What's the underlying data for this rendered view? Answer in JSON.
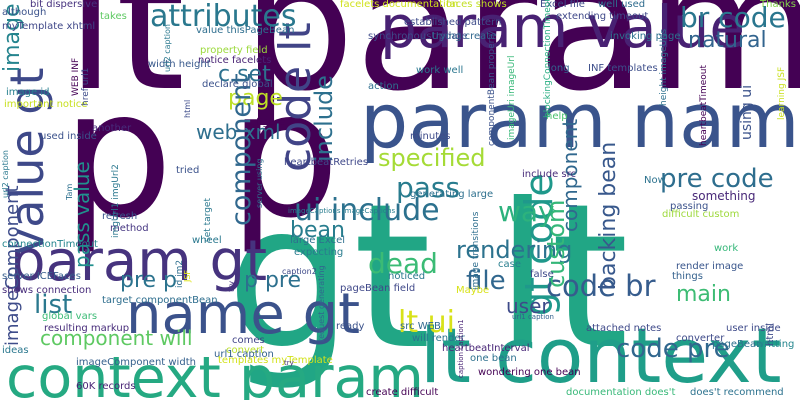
{
  "words": [
    {
      "text": "lt param",
      "color": "#440154"
    },
    {
      "text": "gt lt",
      "color": "#21a685"
    },
    {
      "text": "p p",
      "color": "#440154"
    },
    {
      "text": "param name",
      "color": "#3a548c"
    },
    {
      "text": "lt context",
      "color": "#1f9e89"
    },
    {
      "text": "context param",
      "color": "#25a982"
    },
    {
      "text": "param value",
      "color": "#482173"
    },
    {
      "text": "param gt",
      "color": "#46337e"
    },
    {
      "text": "name gt",
      "color": "#3b528b"
    },
    {
      "text": "value gt",
      "color": "#3e4989"
    },
    {
      "text": "code lt",
      "color": "#414487"
    },
    {
      "text": "br code",
      "color": "#2a768e"
    },
    {
      "text": "gt code",
      "color": "#1f988b"
    },
    {
      "text": "code br",
      "color": "#365c8d"
    },
    {
      "text": "attributes",
      "color": "#2a788e"
    },
    {
      "text": "component",
      "color": "#31688e"
    },
    {
      "text": "ui include",
      "color": "#2c718e"
    },
    {
      "text": "include",
      "color": "#2d708e"
    },
    {
      "text": "pre code",
      "color": "#2e6e8e"
    },
    {
      "text": "code pre",
      "color": "#31678e"
    },
    {
      "text": "pass value",
      "color": "#21908d"
    },
    {
      "text": "pass",
      "color": "#287c8e"
    },
    {
      "text": "rendering",
      "color": "#2c728e"
    },
    {
      "text": "specified",
      "color": "#a5db36"
    },
    {
      "text": "way",
      "color": "#2db27d"
    },
    {
      "text": "custom",
      "color": "#35b779"
    },
    {
      "text": "backing bean",
      "color": "#38588c"
    },
    {
      "text": "natural",
      "color": "#32648e"
    },
    {
      "text": "page",
      "color": "#bddf26"
    },
    {
      "text": "c set",
      "color": "#2d718e"
    },
    {
      "text": "pre p",
      "color": "#2c738e"
    },
    {
      "text": "p pre",
      "color": "#2d708e"
    },
    {
      "text": "list",
      "color": "#2a788e"
    },
    {
      "text": "dead",
      "color": "#3bbb75"
    },
    {
      "text": "file",
      "color": "#31678e"
    },
    {
      "text": "main",
      "color": "#3dbc74"
    },
    {
      "text": "lt ui",
      "color": "#d8e219"
    },
    {
      "text": "user",
      "color": "#3e4a89"
    },
    {
      "text": "bean",
      "color": "#287d8e"
    },
    {
      "text": "web xml",
      "color": "#2e6f8e"
    },
    {
      "text": "imageComponent",
      "color": "#3e4c8a"
    },
    {
      "text": "component will",
      "color": "#5ec962"
    },
    {
      "text": "image gt",
      "color": "#25848e"
    },
    {
      "text": "facelets documentation",
      "color": "#d0e11c"
    },
    {
      "text": "faces shows",
      "color": "#c2df23"
    },
    {
      "text": "Excel file",
      "color": "#3e4a89"
    },
    {
      "text": "well used",
      "color": "#2f6c8e"
    },
    {
      "text": "Thanks",
      "color": "#84d44b"
    },
    {
      "text": "value thisPageBean",
      "color": "#2e6e8e"
    },
    {
      "text": "property field",
      "color": "#9bd93c"
    },
    {
      "text": "bit dispersive",
      "color": "#46327e"
    },
    {
      "text": "although",
      "color": "#3b528b"
    },
    {
      "text": "myTemplate xhtml",
      "color": "#3f4788"
    },
    {
      "text": "takes",
      "color": "#5ec962"
    },
    {
      "text": "trying create",
      "color": "#31688e"
    },
    {
      "text": "invoking page",
      "color": "#2c718e"
    },
    {
      "text": "notice facelets",
      "color": "#482374"
    },
    {
      "text": "declare global",
      "color": "#3b528b"
    },
    {
      "text": "image id",
      "color": "#277f8e"
    },
    {
      "text": "important notice",
      "color": "#c8e020"
    },
    {
      "text": "used inside",
      "color": "#3b528b"
    },
    {
      "text": "another",
      "color": "#472c7a"
    },
    {
      "text": "heartbeatRetries",
      "color": "#3f4889"
    },
    {
      "text": "include src",
      "color": "#472c7a"
    },
    {
      "text": "heartbeatTimeout",
      "color": "#440154"
    },
    {
      "text": "heartbeatInterval",
      "color": "#482677"
    },
    {
      "text": "work well",
      "color": "#2a768e"
    },
    {
      "text": "action",
      "color": "#2e6e8e"
    },
    {
      "text": "help",
      "color": "#4ac16d"
    },
    {
      "text": "minutes",
      "color": "#3e4c8a"
    },
    {
      "text": "tried",
      "color": "#3b528b"
    },
    {
      "text": "figure",
      "color": "#440154"
    },
    {
      "text": "set target",
      "color": "#2a788e"
    },
    {
      "text": "refresh",
      "color": "#3a548c"
    },
    {
      "text": "method",
      "color": "#453581"
    },
    {
      "text": "large Excel",
      "color": "#2d708e"
    },
    {
      "text": "expecting",
      "color": "#287c8e"
    },
    {
      "text": "wheel",
      "color": "#2a788e"
    },
    {
      "text": "connectionTimeout",
      "color": "#24868e"
    },
    {
      "text": "server ICEFaces",
      "color": "#365d8d"
    },
    {
      "text": "shows connection",
      "color": "#472c7a"
    },
    {
      "text": "target componentBean",
      "color": "#2e6e8e"
    },
    {
      "text": "global vars",
      "color": "#3bbb75"
    },
    {
      "text": "resulting markup",
      "color": "#472c7a"
    },
    {
      "text": "user inside",
      "color": "#3e4a89"
    },
    {
      "text": "ideas",
      "color": "#2a778e"
    },
    {
      "text": "imageComponent width",
      "color": "#35608d"
    },
    {
      "text": "60K records",
      "color": "#482475"
    },
    {
      "text": "templates myTemplate",
      "color": "#d2e21b"
    },
    {
      "text": "create difficult",
      "color": "#440154"
    },
    {
      "text": "documentation does't",
      "color": "#37b878"
    },
    {
      "text": "does't recommend",
      "color": "#2c728e"
    },
    {
      "text": "pageBean field",
      "color": "#3f4889"
    },
    {
      "text": "request generating",
      "color": "#31678e"
    },
    {
      "text": "src WEB",
      "color": "#31688e"
    },
    {
      "text": "will render",
      "color": "#2c718e"
    },
    {
      "text": "attached notes",
      "color": "#3e4989"
    },
    {
      "text": "converter",
      "color": "#3e4a89"
    },
    {
      "text": "pageBean",
      "color": "#2e6f8e"
    },
    {
      "text": "writting",
      "color": "#24868e"
    },
    {
      "text": "validation",
      "color": "#2e6e8e"
    },
    {
      "text": "things",
      "color": "#34618d"
    },
    {
      "text": "case",
      "color": "#277e8e"
    },
    {
      "text": "false",
      "color": "#3e4989"
    },
    {
      "text": "Maybe",
      "color": "#d8e219"
    },
    {
      "text": "noticed",
      "color": "#2a788e"
    },
    {
      "text": "wrong way",
      "color": "#463480"
    },
    {
      "text": "parameters",
      "color": "#3f4788"
    },
    {
      "text": "passing",
      "color": "#3b528b"
    },
    {
      "text": "difficult custom",
      "color": "#9dd93b"
    },
    {
      "text": "Now",
      "color": "#2c728e"
    },
    {
      "text": "work",
      "color": "#35b779"
    },
    {
      "text": "something",
      "color": "#482878"
    },
    {
      "text": "render image",
      "color": "#39568c"
    },
    {
      "text": "ready",
      "color": "#3b528b"
    },
    {
      "text": "convert",
      "color": "#bade28"
    },
    {
      "text": "comes",
      "color": "#414487"
    },
    {
      "text": "wondering one bean",
      "color": "#440154"
    },
    {
      "text": "one bean",
      "color": "#2d708e"
    },
    {
      "text": "want",
      "color": "#e5e419"
    },
    {
      "text": "must",
      "color": "#3b528b"
    },
    {
      "text": "complete",
      "color": "#2c728e"
    },
    {
      "text": "long",
      "color": "#34618d"
    },
    {
      "text": "INF templates",
      "color": "#3d4e8a"
    },
    {
      "text": "established pattern",
      "color": "#3e4c8a"
    },
    {
      "text": "extending timeout",
      "color": "#3f4889"
    },
    {
      "text": "synchronousUpdate",
      "color": "#3e4a89"
    },
    {
      "text": "width height",
      "color": "#38598c"
    },
    {
      "text": "blockingConnectionTimeout",
      "color": "#27ad81"
    },
    {
      "text": "componentBean property",
      "color": "#3b528b"
    },
    {
      "text": "imageUri imageUrl",
      "color": "#37b878"
    },
    {
      "text": "image transitions",
      "color": "#2e6e8e"
    },
    {
      "text": "height imageUris",
      "color": "#2d708e"
    },
    {
      "text": "using ui",
      "color": "#3b528b"
    },
    {
      "text": "learning JSF",
      "color": "#cae11f"
    },
    {
      "text": "html",
      "color": "#3e4c8a"
    },
    {
      "text": "imgUrl1 imgUrl2",
      "color": "#2a778e"
    },
    {
      "text": "Tam",
      "color": "#2d708e"
    },
    {
      "text": "WEB INF",
      "color": "#440154"
    },
    {
      "text": "href url1",
      "color": "#3e4c8a"
    },
    {
      "text": "url2 caption",
      "color": "#2a788e"
    },
    {
      "text": "caption2",
      "color": "#3e4a89"
    },
    {
      "text": "id im2",
      "color": "#2e6e8e"
    },
    {
      "text": "JSF",
      "color": "#dde318"
    },
    {
      "text": "server using",
      "color": "#2d708e"
    },
    {
      "text": "url1 caption",
      "color": "#34618d"
    },
    {
      "text": "try",
      "color": "#46337e"
    },
    {
      "text": "imgUrl2 imageCaptions",
      "color": "#2a788e"
    },
    {
      "text": "caption caption1",
      "color": "#482374"
    },
    {
      "text": "generating large",
      "color": "#2d708e"
    },
    {
      "text": "imageCaptions imageCaptions",
      "color": "#287c8e"
    }
  ]
}
